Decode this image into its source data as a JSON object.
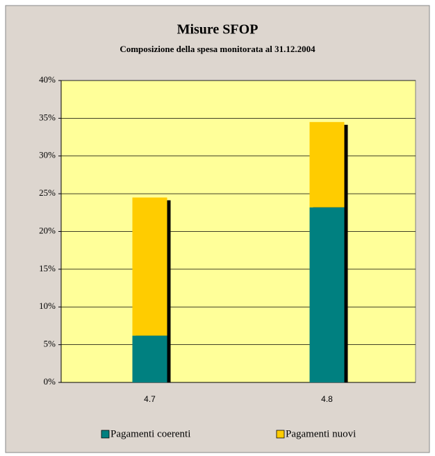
{
  "chart_data": {
    "type": "bar",
    "stacked": true,
    "title": "Misure SFOP",
    "subtitle": "Composizione della spesa monitorata al 31.12.2004",
    "categories": [
      "4.7",
      "4.8"
    ],
    "series": [
      {
        "name": "Pagamenti coerenti",
        "color": "#008080",
        "values": [
          6.2,
          23.2
        ]
      },
      {
        "name": "Pagamenti nuovi",
        "color": "#ffcc00",
        "values": [
          18.3,
          11.3
        ]
      }
    ],
    "ylim": [
      0,
      40
    ],
    "yticks": [
      {
        "value": 0,
        "label": "0%"
      },
      {
        "value": 5,
        "label": "5%"
      },
      {
        "value": 10,
        "label": "10%"
      },
      {
        "value": 15,
        "label": "15%"
      },
      {
        "value": 20,
        "label": "20%"
      },
      {
        "value": 25,
        "label": "25%"
      },
      {
        "value": 30,
        "label": "30%"
      },
      {
        "value": 35,
        "label": "35%"
      },
      {
        "value": 40,
        "label": "40%"
      }
    ],
    "grid": true,
    "plot_background": "#ffff99",
    "legend": "bottom"
  }
}
